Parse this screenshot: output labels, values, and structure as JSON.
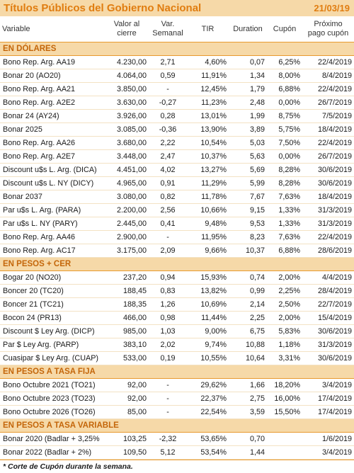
{
  "header": {
    "title": "Títulos Públicos del Gobierno Nacional",
    "date": "21/03/19"
  },
  "columns": [
    "Variable",
    "Valor al cierre",
    "Var. Semanal",
    "TIR",
    "Duration",
    "Cupón",
    "Próximo pago cupón"
  ],
  "sections": [
    {
      "title": "EN DÓLARES",
      "rows": [
        [
          "Bono Rep. Arg. AA19",
          "4.230,00",
          "2,71",
          "4,60%",
          "0,07",
          "6,25%",
          "22/4/2019"
        ],
        [
          "Bonar 20 (AO20)",
          "4.064,00",
          "0,59",
          "11,91%",
          "1,34",
          "8,00%",
          "8/4/2019"
        ],
        [
          "Bono Rep. Arg. AA21",
          "3.850,00",
          "-",
          "12,45%",
          "1,79",
          "6,88%",
          "22/4/2019"
        ],
        [
          "Bono Rep. Arg. A2E2",
          "3.630,00",
          "-0,27",
          "11,23%",
          "2,48",
          "0,00%",
          "26/7/2019"
        ],
        [
          "Bonar 24 (AY24)",
          "3.926,00",
          "0,28",
          "13,01%",
          "1,99",
          "8,75%",
          "7/5/2019"
        ],
        [
          "Bonar 2025",
          "3.085,00",
          "-0,36",
          "13,90%",
          "3,89",
          "5,75%",
          "18/4/2019"
        ],
        [
          "Bono Rep. Arg. AA26",
          "3.680,00",
          "2,22",
          "10,54%",
          "5,03",
          "7,50%",
          "22/4/2019"
        ],
        [
          "Bono Rep. Arg. A2E7",
          "3.448,00",
          "2,47",
          "10,37%",
          "5,63",
          "0,00%",
          "26/7/2019"
        ],
        [
          "Discount u$s L. Arg. (DICA)",
          "4.451,00",
          "4,02",
          "13,27%",
          "5,69",
          "8,28%",
          "30/6/2019"
        ],
        [
          "Discount u$s L. NY (DICY)",
          "4.965,00",
          "0,91",
          "11,29%",
          "5,99",
          "8,28%",
          "30/6/2019"
        ],
        [
          "Bonar 2037",
          "3.080,00",
          "0,82",
          "11,78%",
          "7,67",
          "7,63%",
          "18/4/2019"
        ],
        [
          "Par u$s L. Arg. (PARA)",
          "2.200,00",
          "2,56",
          "10,66%",
          "9,15",
          "1,33%",
          "31/3/2019"
        ],
        [
          "Par u$s L. NY (PARY)",
          "2.445,00",
          "0,41",
          "9,48%",
          "9,53",
          "1,33%",
          "31/3/2019"
        ],
        [
          "Bono Rep. Arg. AA46",
          "2.900,00",
          "-",
          "11,95%",
          "8,23",
          "7,63%",
          "22/4/2019"
        ],
        [
          "Bono Rep. Arg. AC17",
          "3.175,00",
          "2,09",
          "9,66%",
          "10,37",
          "6,88%",
          "28/6/2019"
        ]
      ]
    },
    {
      "title": "EN PESOS + CER",
      "rows": [
        [
          "Bogar 20 (NO20)",
          "237,20",
          "0,94",
          "15,93%",
          "0,74",
          "2,00%",
          "4/4/2019"
        ],
        [
          "Boncer 20 (TC20)",
          "188,45",
          "0,83",
          "13,82%",
          "0,99",
          "2,25%",
          "28/4/2019"
        ],
        [
          "Boncer 21 (TC21)",
          "188,35",
          "1,26",
          "10,69%",
          "2,14",
          "2,50%",
          "22/7/2019"
        ],
        [
          "Bocon 24 (PR13)",
          "466,00",
          "0,98",
          "11,44%",
          "2,25",
          "2,00%",
          "15/4/2019"
        ],
        [
          "Discount $ Ley Arg. (DICP)",
          "985,00",
          "1,03",
          "9,00%",
          "6,75",
          "5,83%",
          "30/6/2019"
        ],
        [
          "Par $ Ley Arg. (PARP)",
          "383,10",
          "2,02",
          "9,74%",
          "10,88",
          "1,18%",
          "31/3/2019"
        ],
        [
          "Cuasipar $ Ley Arg. (CUAP)",
          "533,00",
          "0,19",
          "10,55%",
          "10,64",
          "3,31%",
          "30/6/2019"
        ]
      ]
    },
    {
      "title": "EN PESOS A TASA FIJA",
      "rows": [
        [
          "Bono Octubre 2021 (TO21)",
          "92,00",
          "-",
          "29,62%",
          "1,66",
          "18,20%",
          "3/4/2019"
        ],
        [
          "Bono Octubre 2023 (TO23)",
          "92,00",
          "-",
          "22,37%",
          "2,75",
          "16,00%",
          "17/4/2019"
        ],
        [
          "Bono Octubre 2026 (TO26)",
          "85,00",
          "-",
          "22,54%",
          "3,59",
          "15,50%",
          "17/4/2019"
        ]
      ]
    },
    {
      "title": "EN PESOS A TASA VARIABLE",
      "rows": [
        [
          "Bonar 2020 (Badlar + 3,25%",
          "103,25",
          "-2,32",
          "53,65%",
          "0,70",
          "",
          "1/6/2019"
        ],
        [
          "Bonar 2022 (Badlar + 2%)",
          "109,50",
          "5,12",
          "53,54%",
          "1,44",
          "",
          "3/4/2019"
        ]
      ]
    }
  ],
  "footnote": "* Corte de Cupón durante la semana."
}
